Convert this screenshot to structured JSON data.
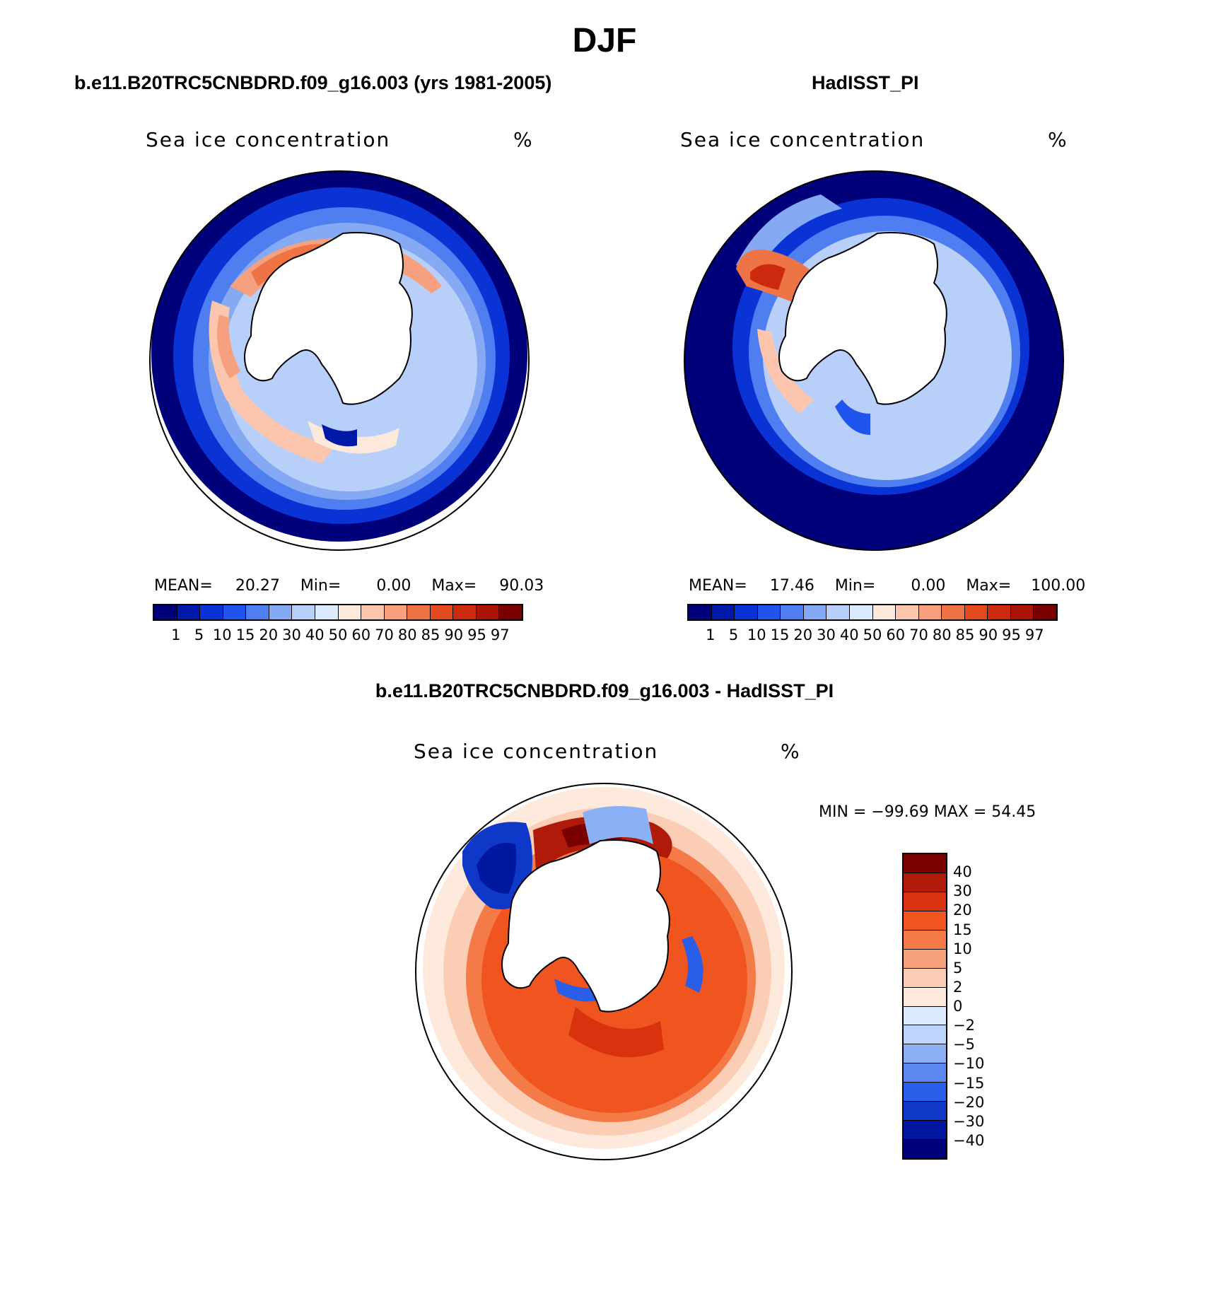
{
  "figure": {
    "season_title": "DJF",
    "panel_left_header": "b.e11.B20TRC5CNBDRD.f09_g16.003 (yrs 1981-2005)",
    "panel_right_header": "HadISST_PI",
    "panel_diff_header": "b.e11.B20TRC5CNBDRD.f09_g16.003 - HadISST_PI"
  },
  "panels": {
    "model": {
      "variable": "Sea ice concentration",
      "units": "%",
      "mean_label": "MEAN=",
      "mean_value": "20.27",
      "min_label": "Min=",
      "min_value": "0.00",
      "max_label": "Max=",
      "max_value": "90.03"
    },
    "obs": {
      "variable": "Sea ice concentration",
      "units": "%",
      "mean_label": "MEAN=",
      "mean_value": "17.46",
      "min_label": "Min=",
      "min_value": "0.00",
      "max_label": "Max=",
      "max_value": "100.00"
    },
    "diff": {
      "variable": "Sea ice concentration",
      "units": "%",
      "range_text": "MIN = −99.69 MAX =   54.45"
    }
  },
  "colorbars": {
    "abs_levels": [
      "1",
      "5",
      "10",
      "15",
      "20",
      "30",
      "40",
      "50",
      "60",
      "70",
      "80",
      "85",
      "90",
      "95",
      "97"
    ],
    "abs_colors": [
      "#00007a",
      "#0018a8",
      "#0a33d6",
      "#1f55ee",
      "#4f7ef0",
      "#86a9f4",
      "#b8cffa",
      "#dbeafd",
      "#fde8dc",
      "#fbc6ad",
      "#f6a07f",
      "#ee7345",
      "#e34a1f",
      "#cb2a0f",
      "#a81508",
      "#7a0000"
    ],
    "diff_levels": [
      "40",
      "30",
      "20",
      "15",
      "10",
      "5",
      "2",
      "0",
      "−2",
      "−5",
      "−10",
      "−15",
      "−20",
      "−30",
      "−40"
    ],
    "diff_colors": [
      "#7a0000",
      "#b01a08",
      "#d8330e",
      "#f0541f",
      "#f47a48",
      "#f7a27c",
      "#fbcdb4",
      "#fdeadc",
      "#dcebfb",
      "#bdd4fb",
      "#8cb0f6",
      "#5a88f0",
      "#2a5ee8",
      "#1038c8",
      "#0018a0",
      "#00007a"
    ]
  },
  "chart_data": [
    {
      "type": "heatmap",
      "title": "Sea ice concentration",
      "subtitle": "b.e11.B20TRC5CNBDRD.f09_g16.003 (yrs 1981-2005)",
      "units": "%",
      "projection": "south-polar-stereographic",
      "season": "DJF",
      "mean": 20.27,
      "min": 0.0,
      "max": 90.03,
      "levels": [
        1,
        5,
        10,
        15,
        20,
        30,
        40,
        50,
        60,
        70,
        80,
        85,
        90,
        95,
        97
      ]
    },
    {
      "type": "heatmap",
      "title": "Sea ice concentration",
      "subtitle": "HadISST_PI",
      "units": "%",
      "projection": "south-polar-stereographic",
      "season": "DJF",
      "mean": 17.46,
      "min": 0.0,
      "max": 100.0,
      "levels": [
        1,
        5,
        10,
        15,
        20,
        30,
        40,
        50,
        60,
        70,
        80,
        85,
        90,
        95,
        97
      ]
    },
    {
      "type": "heatmap",
      "title": "Sea ice concentration",
      "subtitle": "b.e11.B20TRC5CNBDRD.f09_g16.003 - HadISST_PI",
      "units": "%",
      "projection": "south-polar-stereographic",
      "season": "DJF",
      "min": -99.69,
      "max": 54.45,
      "levels": [
        -40,
        -30,
        -20,
        -15,
        -10,
        -5,
        -2,
        0,
        2,
        5,
        10,
        15,
        20,
        30,
        40
      ]
    }
  ]
}
